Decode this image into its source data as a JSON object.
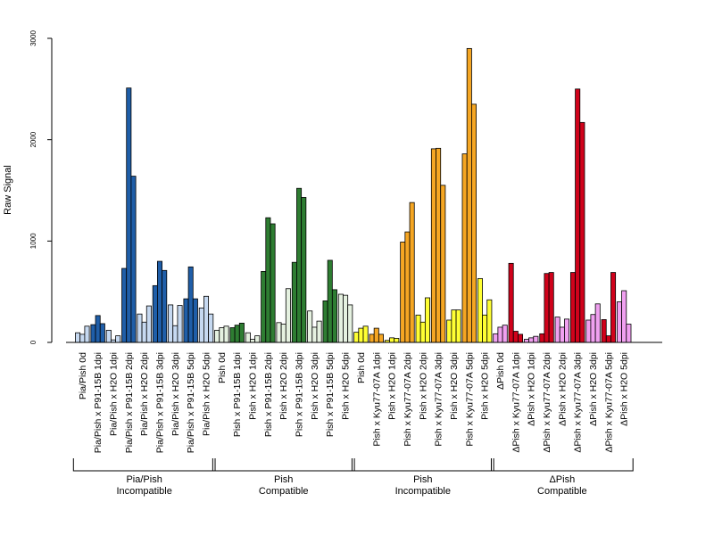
{
  "chart_data": {
    "type": "bar",
    "ylabel": "Raw Signal",
    "ylim": [
      0,
      3000
    ],
    "yticks": [
      "0",
      "1000",
      "2000",
      "3000"
    ],
    "grid": false,
    "legend": "none",
    "groups": [
      {
        "name_line1": "Pia/Pish",
        "name_line2": "Incompatible",
        "categories": [
          {
            "label": "Pia/Pish 0d",
            "color": "#c6d9f1",
            "values": [
              95,
              80,
              160
            ]
          },
          {
            "label": "Pia/Pish x P91-15B 1dpi",
            "color": "#1f5ea8",
            "values": [
              175,
              265,
              185
            ]
          },
          {
            "label": "Pia/Pish x H2O 1dpi",
            "color": "#c6d9f1",
            "values": [
              120,
              25,
              65
            ]
          },
          {
            "label": "Pia/Pish x P91-15B 2dpi",
            "color": "#1f5ea8",
            "values": [
              730,
              2510,
              1640
            ]
          },
          {
            "label": "Pia/Pish x H2O 2dpi",
            "color": "#c6d9f1",
            "values": [
              280,
              200,
              360
            ]
          },
          {
            "label": "Pia/Pish x P91-15B 3dpi",
            "color": "#1f5ea8",
            "values": [
              560,
              800,
              710
            ]
          },
          {
            "label": "Pia/Pish x H2O 3dpi",
            "color": "#c6d9f1",
            "values": [
              370,
              165,
              365
            ]
          },
          {
            "label": "Pia/Pish x P91-15B 5dpi",
            "color": "#1f5ea8",
            "values": [
              430,
              745,
              430
            ]
          },
          {
            "label": "Pia/Pish x H2O 5dpi",
            "color": "#c6d9f1",
            "values": [
              340,
              455,
              280
            ]
          }
        ]
      },
      {
        "name_line1": "Pish",
        "name_line2": "Compatible",
        "categories": [
          {
            "label": "Pish 0d",
            "color": "#e5f1e0",
            "values": [
              120,
              145,
              160
            ]
          },
          {
            "label": "Pish x P91-15B 1dpi",
            "color": "#2e7d32",
            "values": [
              145,
              170,
              190
            ]
          },
          {
            "label": "Pish x H2O 1dpi",
            "color": "#e5f1e0",
            "values": [
              95,
              30,
              65
            ]
          },
          {
            "label": "Pish x P91-15B 2dpi",
            "color": "#2e7d32",
            "values": [
              700,
              1230,
              1170
            ]
          },
          {
            "label": "Pish x H2O 2dpi",
            "color": "#e5f1e0",
            "values": [
              195,
              180,
              530
            ]
          },
          {
            "label": "Pish x P91-15B 3dpi",
            "color": "#2e7d32",
            "values": [
              790,
              1520,
              1430
            ]
          },
          {
            "label": "Pish x H2O 3dpi",
            "color": "#e5f1e0",
            "values": [
              310,
              150,
              210
            ]
          },
          {
            "label": "Pish x P91-15B 5dpi",
            "color": "#2e7d32",
            "values": [
              410,
              810,
              520
            ]
          },
          {
            "label": "Pish x H2O 5dpi",
            "color": "#e5f1e0",
            "values": [
              475,
              465,
              370
            ]
          }
        ]
      },
      {
        "name_line1": "Pish",
        "name_line2": "Incompatible",
        "categories": [
          {
            "label": "Pish 0d",
            "color": "#ffff33",
            "values": [
              100,
              140,
              160
            ]
          },
          {
            "label": "Pish x Kyu77-07A 1dpi",
            "color": "#f5a623",
            "values": [
              80,
              140,
              80
            ]
          },
          {
            "label": "Pish x H2O 1dpi",
            "color": "#ffff33",
            "values": [
              20,
              45,
              40
            ]
          },
          {
            "label": "Pish x Kyu77-07A 2dpi",
            "color": "#f5a623",
            "values": [
              990,
              1090,
              1380
            ]
          },
          {
            "label": "Pish x H2O 2dpi",
            "color": "#ffff33",
            "values": [
              270,
              200,
              440
            ]
          },
          {
            "label": "Pish x Kyu77-07A 3dpi",
            "color": "#f5a623",
            "values": [
              1910,
              1915,
              1550
            ]
          },
          {
            "label": "Pish x H2O 3dpi",
            "color": "#ffff33",
            "values": [
              220,
              320,
              320
            ]
          },
          {
            "label": "Pish x Kyu77-07A 5dpi",
            "color": "#f5a623",
            "values": [
              1860,
              2900,
              2350
            ]
          },
          {
            "label": "Pish x H2O 5dpi",
            "color": "#ffff33",
            "values": [
              630,
              270,
              420
            ]
          }
        ]
      },
      {
        "name_line1": "ΔPish",
        "name_line2": "Compatible",
        "categories": [
          {
            "label": "ΔPish 0d",
            "color": "#f0a0f0",
            "values": [
              85,
              150,
              170
            ]
          },
          {
            "label": "ΔPish x Kyu77-07A 1dpi",
            "color": "#d0021b",
            "values": [
              780,
              110,
              80
            ]
          },
          {
            "label": "ΔPish x H2O 1dpi",
            "color": "#f0a0f0",
            "values": [
              30,
              45,
              60
            ]
          },
          {
            "label": "ΔPish x Kyu77-07A 2dpi",
            "color": "#d0021b",
            "values": [
              85,
              680,
              690
            ]
          },
          {
            "label": "ΔPish x H2O 2dpi",
            "color": "#f0a0f0",
            "values": [
              250,
              150,
              230
            ]
          },
          {
            "label": "ΔPish x Kyu77-07A 3dpi",
            "color": "#d0021b",
            "values": [
              690,
              2500,
              2170
            ]
          },
          {
            "label": "ΔPish x H2O 3dpi",
            "color": "#f0a0f0",
            "values": [
              220,
              275,
              380
            ]
          },
          {
            "label": "ΔPish x Kyu77-07A 5dpi",
            "color": "#d0021b",
            "values": [
              225,
              65,
              690
            ]
          },
          {
            "label": "ΔPish x H2O 5dpi",
            "color": "#f0a0f0",
            "values": [
              400,
              510,
              180
            ]
          }
        ]
      }
    ]
  }
}
